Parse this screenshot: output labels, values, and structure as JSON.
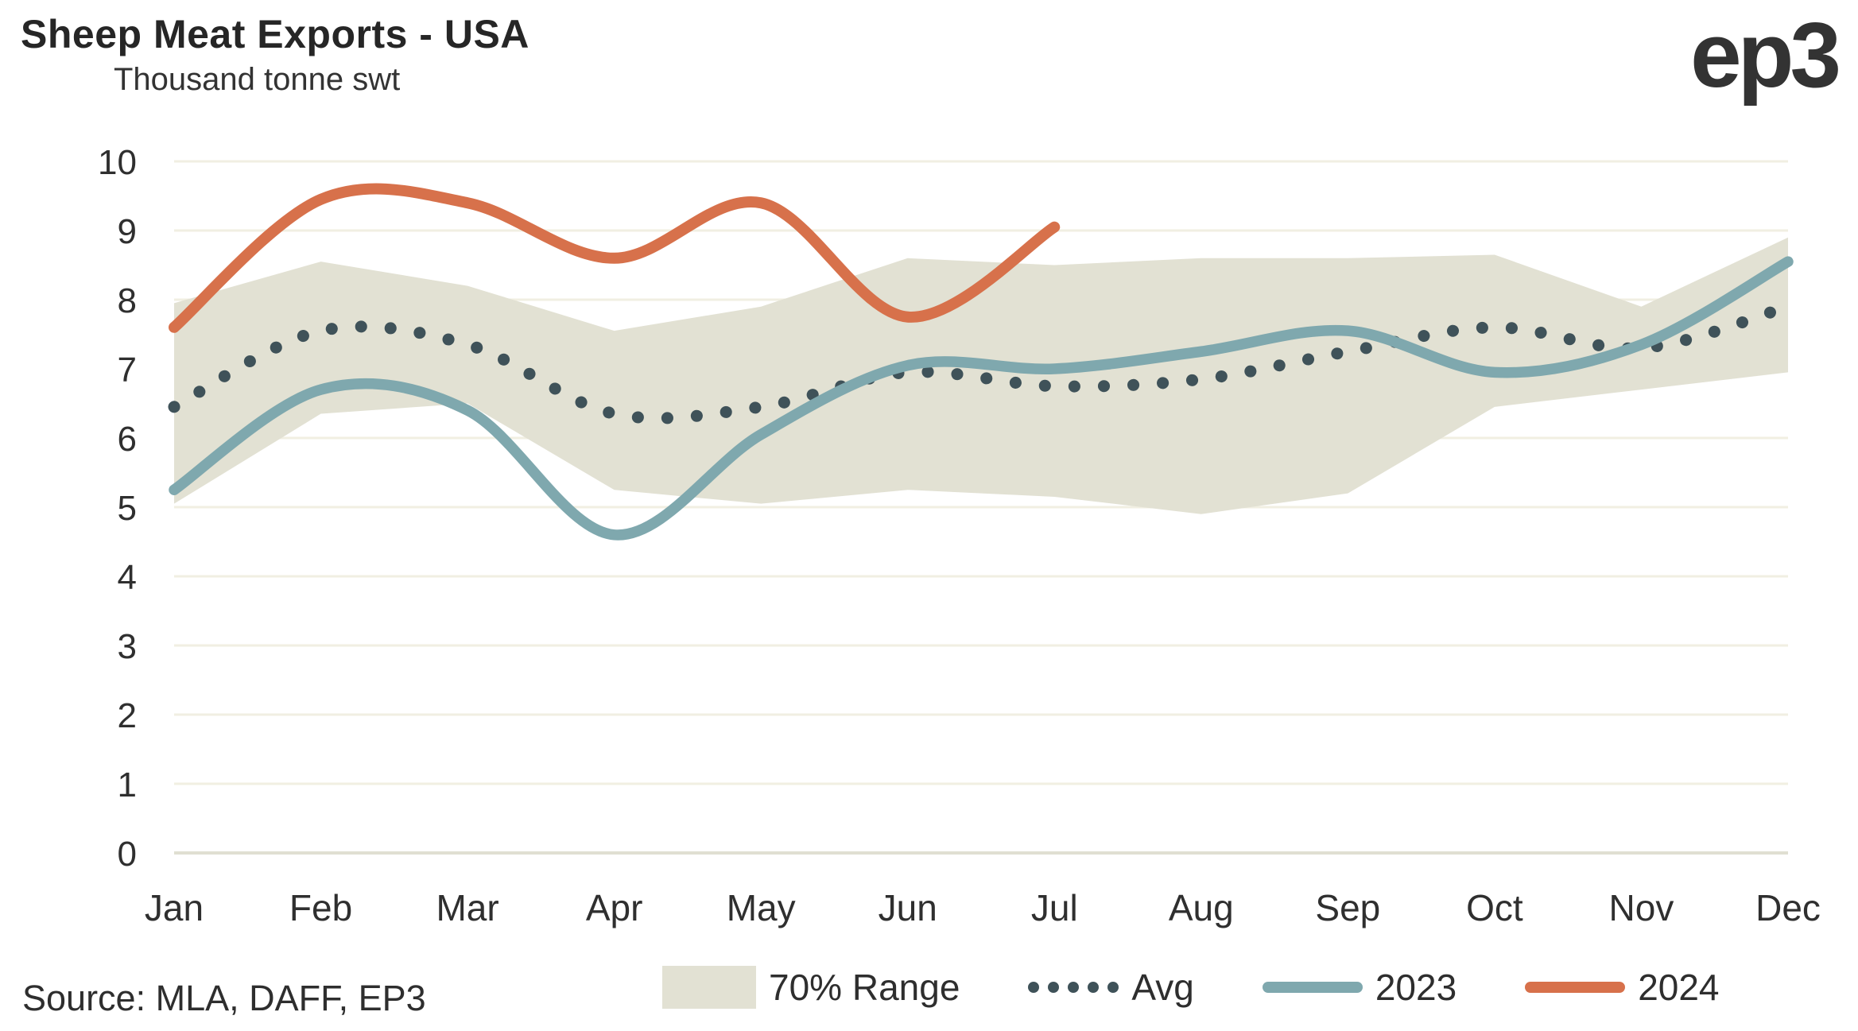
{
  "header": {
    "title": "Sheep Meat Exports - USA",
    "subtitle": "Thousand tonne swt",
    "logo": "ep3"
  },
  "legend": {
    "range": "70% Range",
    "avg": "Avg",
    "y2023": "2023",
    "y2024": "2024"
  },
  "footer": {
    "source": "Source: MLA, DAFF, EP3"
  },
  "colors": {
    "band": "#e2e1d3",
    "avg_dots": "#3f5259",
    "y2023": "#7fa8ae",
    "y2024": "#d7714b",
    "grid": "#f1efe2",
    "grid_zero": "#e0dfd2",
    "tick_text": "#2f2f2f"
  },
  "chart_data": {
    "type": "line",
    "title": "Sheep Meat Exports - USA",
    "ylabel": "Thousand tonne swt",
    "xlabel": "",
    "categories": [
      "Jan",
      "Feb",
      "Mar",
      "Apr",
      "May",
      "Jun",
      "Jul",
      "Aug",
      "Sep",
      "Oct",
      "Nov",
      "Dec"
    ],
    "ylim": [
      0,
      10
    ],
    "yticks": [
      0,
      1,
      2,
      3,
      4,
      5,
      6,
      7,
      8,
      9,
      10
    ],
    "grid": true,
    "legend_position": "bottom",
    "series": [
      {
        "name": "70% Range",
        "type": "band",
        "upper": [
          7.95,
          8.55,
          8.2,
          7.55,
          7.9,
          8.6,
          8.5,
          8.6,
          8.6,
          8.65,
          7.9,
          8.9
        ],
        "lower": [
          5.05,
          6.35,
          6.5,
          5.25,
          5.05,
          5.25,
          5.15,
          4.9,
          5.2,
          6.45,
          6.7,
          6.95
        ]
      },
      {
        "name": "Avg",
        "type": "line",
        "style": "dotted",
        "values": [
          6.45,
          7.55,
          7.35,
          6.35,
          6.45,
          6.95,
          6.75,
          6.85,
          7.25,
          7.6,
          7.3,
          7.9
        ]
      },
      {
        "name": "2023",
        "type": "line",
        "style": "solid",
        "values": [
          5.25,
          6.7,
          6.4,
          4.6,
          6.05,
          7.05,
          7.0,
          7.25,
          7.55,
          6.95,
          7.35,
          8.55
        ]
      },
      {
        "name": "2024",
        "type": "line",
        "style": "solid",
        "values": [
          7.6,
          9.45,
          9.4,
          8.6,
          9.4,
          7.75,
          9.05
        ]
      }
    ]
  }
}
